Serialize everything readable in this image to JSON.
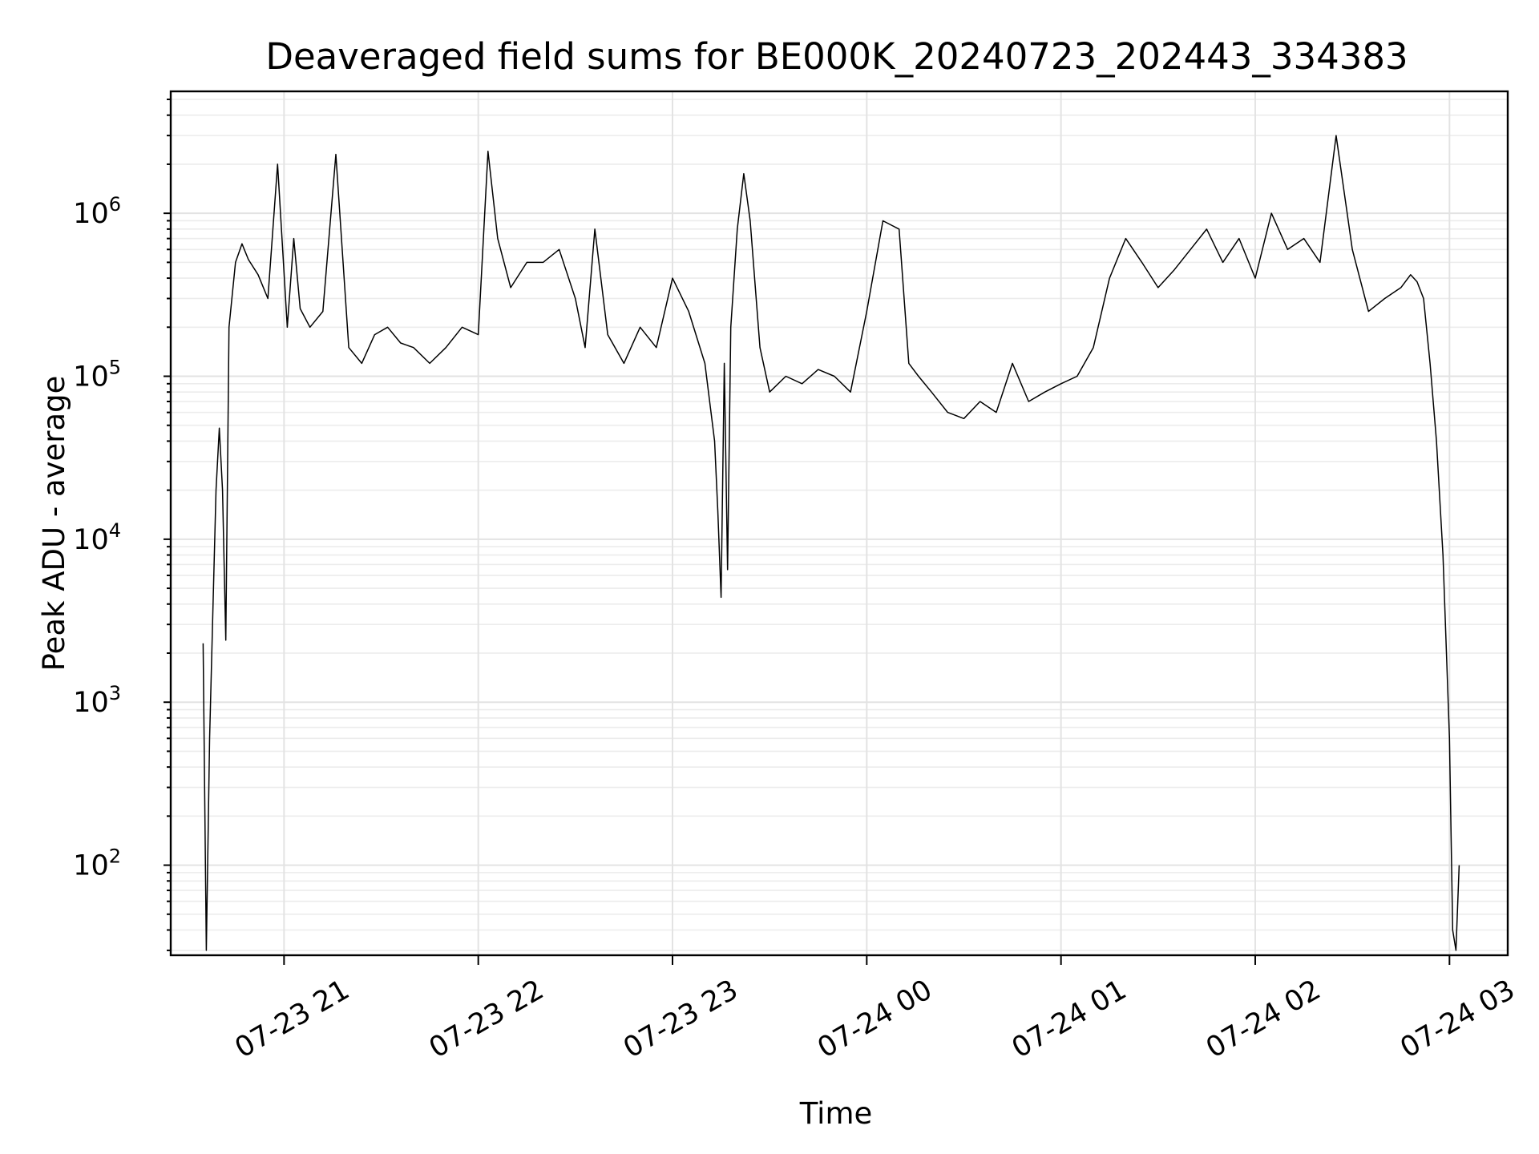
{
  "chart_data": {
    "type": "line",
    "title": "Deaveraged field sums for BE000K_20240723_202443_334383",
    "xlabel": "Time",
    "ylabel": "Peak ADU - average",
    "yscale": "log",
    "ylim": [
      28,
      5600000
    ],
    "xlim": [
      "2024-07-23 20:25",
      "2024-07-24 03:18"
    ],
    "grid": true,
    "legend": "none",
    "line_color": "#000000",
    "x_ticks": [
      {
        "t": "2024-07-23 21:00",
        "label": "07-23 21"
      },
      {
        "t": "2024-07-23 22:00",
        "label": "07-23 22"
      },
      {
        "t": "2024-07-23 23:00",
        "label": "07-23 23"
      },
      {
        "t": "2024-07-24 00:00",
        "label": "07-24 00"
      },
      {
        "t": "2024-07-24 01:00",
        "label": "07-24 01"
      },
      {
        "t": "2024-07-24 02:00",
        "label": "07-24 02"
      },
      {
        "t": "2024-07-24 03:00",
        "label": "07-24 03"
      }
    ],
    "y_ticks": [
      {
        "value": 100,
        "base": "10",
        "exp": "2"
      },
      {
        "value": 1000,
        "base": "10",
        "exp": "3"
      },
      {
        "value": 10000,
        "base": "10",
        "exp": "4"
      },
      {
        "value": 100000,
        "base": "10",
        "exp": "5"
      },
      {
        "value": 1000000,
        "base": "10",
        "exp": "6"
      }
    ],
    "series": [
      {
        "x": [
          "2024-07-23 20:35",
          "2024-07-23 20:36",
          "2024-07-23 20:37",
          "2024-07-23 20:38",
          "2024-07-23 20:39",
          "2024-07-23 20:40",
          "2024-07-23 20:41",
          "2024-07-23 20:42",
          "2024-07-23 20:43",
          "2024-07-23 20:45",
          "2024-07-23 20:47",
          "2024-07-23 20:49",
          "2024-07-23 20:52",
          "2024-07-23 20:55",
          "2024-07-23 20:58",
          "2024-07-23 21:01",
          "2024-07-23 21:03",
          "2024-07-23 21:05",
          "2024-07-23 21:08",
          "2024-07-23 21:12",
          "2024-07-23 21:16",
          "2024-07-23 21:20",
          "2024-07-23 21:24",
          "2024-07-23 21:28",
          "2024-07-23 21:32",
          "2024-07-23 21:36",
          "2024-07-23 21:40",
          "2024-07-23 21:45",
          "2024-07-23 21:50",
          "2024-07-23 21:55",
          "2024-07-23 22:00",
          "2024-07-23 22:03",
          "2024-07-23 22:06",
          "2024-07-23 22:10",
          "2024-07-23 22:15",
          "2024-07-23 22:20",
          "2024-07-23 22:25",
          "2024-07-23 22:30",
          "2024-07-23 22:33",
          "2024-07-23 22:36",
          "2024-07-23 22:40",
          "2024-07-23 22:45",
          "2024-07-23 22:50",
          "2024-07-23 22:55",
          "2024-07-23 23:00",
          "2024-07-23 23:05",
          "2024-07-23 23:10",
          "2024-07-23 23:13",
          "2024-07-23 23:14",
          "2024-07-23 23:15",
          "2024-07-23 23:16",
          "2024-07-23 23:17",
          "2024-07-23 23:18",
          "2024-07-23 23:20",
          "2024-07-23 23:22",
          "2024-07-23 23:24",
          "2024-07-23 23:27",
          "2024-07-23 23:30",
          "2024-07-23 23:35",
          "2024-07-23 23:40",
          "2024-07-23 23:45",
          "2024-07-23 23:50",
          "2024-07-23 23:55",
          "2024-07-24 00:00",
          "2024-07-24 00:05",
          "2024-07-24 00:10",
          "2024-07-24 00:13",
          "2024-07-24 00:16",
          "2024-07-24 00:20",
          "2024-07-24 00:25",
          "2024-07-24 00:30",
          "2024-07-24 00:35",
          "2024-07-24 00:40",
          "2024-07-24 00:45",
          "2024-07-24 00:50",
          "2024-07-24 00:55",
          "2024-07-24 01:00",
          "2024-07-24 01:05",
          "2024-07-24 01:10",
          "2024-07-24 01:15",
          "2024-07-24 01:20",
          "2024-07-24 01:25",
          "2024-07-24 01:30",
          "2024-07-24 01:35",
          "2024-07-24 01:40",
          "2024-07-24 01:45",
          "2024-07-24 01:50",
          "2024-07-24 01:55",
          "2024-07-24 02:00",
          "2024-07-24 02:05",
          "2024-07-24 02:10",
          "2024-07-24 02:15",
          "2024-07-24 02:20",
          "2024-07-24 02:25",
          "2024-07-24 02:30",
          "2024-07-24 02:35",
          "2024-07-24 02:40",
          "2024-07-24 02:45",
          "2024-07-24 02:48",
          "2024-07-24 02:50",
          "2024-07-24 02:52",
          "2024-07-24 02:54",
          "2024-07-24 02:56",
          "2024-07-24 02:58",
          "2024-07-24 03:00",
          "2024-07-24 03:01",
          "2024-07-24 03:02",
          "2024-07-24 03:03"
        ],
        "values": [
          2300,
          30,
          600,
          3500,
          20000,
          48000,
          20000,
          2400,
          200000,
          500000,
          650000,
          520000,
          420000,
          300000,
          2000000,
          200000,
          700000,
          260000,
          200000,
          250000,
          2300000,
          150000,
          120000,
          180000,
          200000,
          160000,
          150000,
          120000,
          150000,
          200000,
          180000,
          2400000,
          700000,
          350000,
          500000,
          500000,
          600000,
          300000,
          150000,
          800000,
          180000,
          120000,
          200000,
          150000,
          400000,
          250000,
          120000,
          40000,
          15000,
          4400,
          120000,
          6500,
          200000,
          800000,
          1750000,
          900000,
          150000,
          80000,
          100000,
          90000,
          110000,
          100000,
          80000,
          250000,
          900000,
          800000,
          120000,
          100000,
          80000,
          60000,
          55000,
          70000,
          60000,
          120000,
          70000,
          80000,
          90000,
          100000,
          150000,
          400000,
          700000,
          500000,
          350000,
          450000,
          600000,
          800000,
          500000,
          700000,
          400000,
          1000000,
          600000,
          700000,
          500000,
          3000000,
          600000,
          250000,
          300000,
          350000,
          420000,
          380000,
          300000,
          120000,
          40000,
          8000,
          600,
          40,
          30,
          100
        ]
      }
    ]
  }
}
